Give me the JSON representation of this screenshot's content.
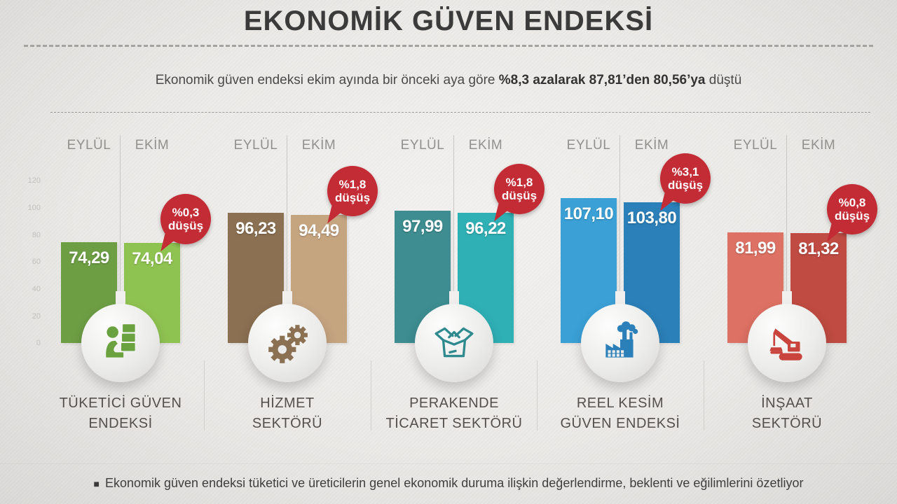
{
  "title": "EKONOMİK GÜVEN ENDEKSİ",
  "subtitle": {
    "part1": "Ekonomik güven endeksi ekim ayında bir önceki aya göre ",
    "part2": "%8,3 azalarak 87,81’den 80,56’ya",
    "part3": " düştü"
  },
  "footer": {
    "bullet": "■",
    "text": "Ekonomik güven endeksi tüketici ve üreticilerin genel ekonomik duruma ilişkin değerlendirme, beklenti ve eğilimlerini özetliyor"
  },
  "colors": {
    "badge": "#c32b35",
    "background": "#edebe8",
    "title_text": "#3b3b3b",
    "month_label": "#92908c",
    "category_label": "#54514d",
    "axis_label": "#c2c0bc"
  },
  "chart_data": {
    "type": "bar",
    "title": "EKONOMİK GÜVEN ENDEKSİ",
    "xlabel": "",
    "ylabel": "",
    "ylim": [
      0,
      120
    ],
    "yticks": [
      "120",
      "100",
      "80",
      "60",
      "40",
      "20",
      "0"
    ],
    "grid": true,
    "legend_position": "column-headers",
    "series_labels": [
      "EYLÜL",
      "EKİM"
    ],
    "groups": [
      {
        "category_lines": [
          "TÜKETİCİ GÜVEN",
          "ENDEKSİ"
        ],
        "icon": "consumer-boxes-icon",
        "values": {
          "eylul": 74.29,
          "ekim": 74.04
        },
        "value_labels": {
          "eylul": "74,29",
          "ekim": "74,04"
        },
        "change_badge": {
          "percent": "%0,3",
          "word": "düşüş"
        },
        "colors": {
          "eylul": "#6d9e44",
          "ekim": "#8fc351",
          "icon": "#6aa23f"
        }
      },
      {
        "category_lines": [
          "HİZMET",
          "SEKTÖRÜ"
        ],
        "icon": "gears-icon",
        "values": {
          "eylul": 96.23,
          "ekim": 94.49
        },
        "value_labels": {
          "eylul": "96,23",
          "ekim": "94,49"
        },
        "change_badge": {
          "percent": "%1,8",
          "word": "düşüş"
        },
        "colors": {
          "eylul": "#8b7052",
          "ekim": "#c5a480",
          "icon": "#8b7052"
        }
      },
      {
        "category_lines": [
          "PERAKENDE",
          "TİCARET SEKTÖRÜ"
        ],
        "icon": "open-box-icon",
        "values": {
          "eylul": 97.99,
          "ekim": 96.22
        },
        "value_labels": {
          "eylul": "97,99",
          "ekim": "96,22"
        },
        "change_badge": {
          "percent": "%1,8",
          "word": "düşüş"
        },
        "colors": {
          "eylul": "#3d8d91",
          "ekim": "#2fb0b5",
          "icon": "#2e8a8e"
        }
      },
      {
        "category_lines": [
          "REEL KESİM",
          "GÜVEN ENDEKSİ"
        ],
        "icon": "factory-icon",
        "values": {
          "eylul": 107.1,
          "ekim": 103.8
        },
        "value_labels": {
          "eylul": "107,10",
          "ekim": "103,80"
        },
        "change_badge": {
          "percent": "%3,1",
          "word": "düşüş"
        },
        "colors": {
          "eylul": "#3aa0d6",
          "ekim": "#2b80b9",
          "icon": "#2b80b9"
        }
      },
      {
        "category_lines": [
          "İNŞAAT",
          "SEKTÖRÜ"
        ],
        "icon": "crane-icon",
        "values": {
          "eylul": 81.99,
          "ekim": 81.32
        },
        "value_labels": {
          "eylul": "81,99",
          "ekim": "81,32"
        },
        "change_badge": {
          "percent": "%0,8",
          "word": "düşüş"
        },
        "colors": {
          "eylul": "#dd7164",
          "ekim": "#bf4b42",
          "icon": "#c8443c"
        }
      }
    ]
  }
}
